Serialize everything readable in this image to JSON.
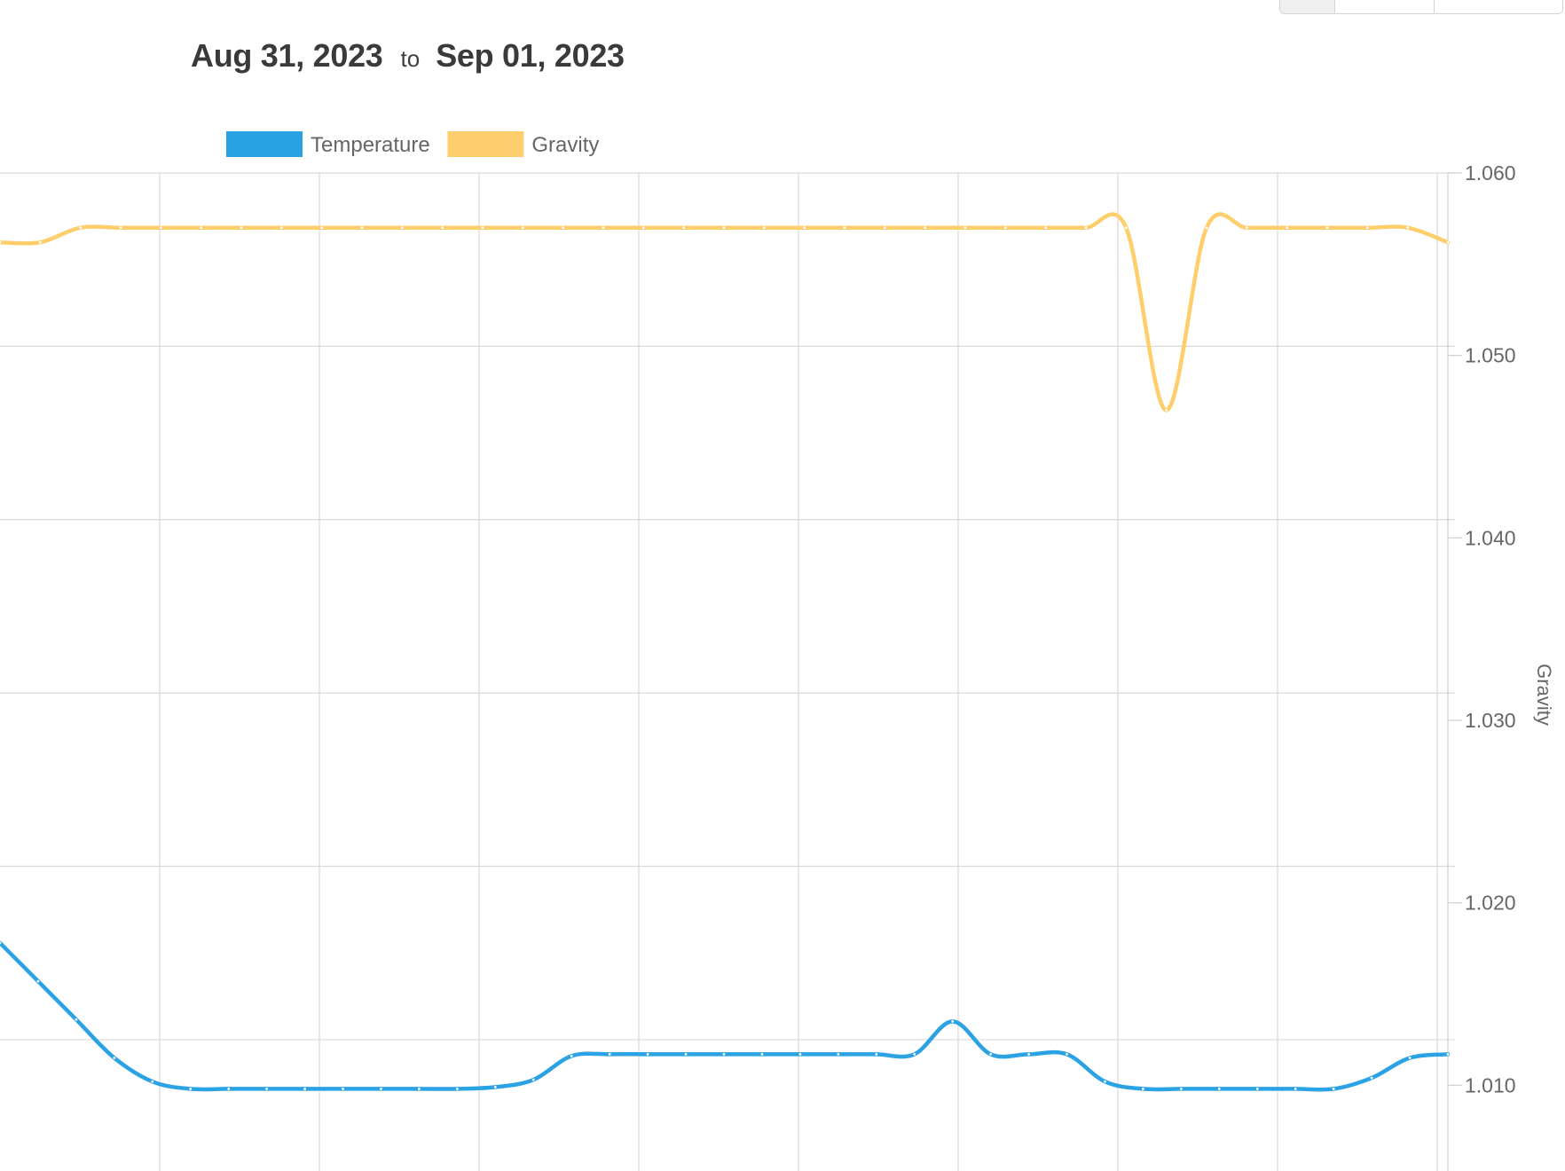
{
  "header": {
    "start_date": "Aug 31, 2023",
    "to_label": "to",
    "end_date": "Sep 01, 2023"
  },
  "chart_data": {
    "type": "line",
    "x_grid_count": 9,
    "yaxis_right": {
      "label": "Gravity",
      "ylim": [
        1.0053,
        1.06
      ],
      "ticks": [
        "1.060",
        "1.050",
        "1.040",
        "1.030",
        "1.020",
        "1.010"
      ]
    },
    "grid": true,
    "legend_position": "top",
    "series": [
      {
        "name": "Temperature",
        "color": "#2BA2E4",
        "values": [
          1.0178,
          1.0157,
          1.0136,
          1.0115,
          1.0102,
          1.0098,
          1.0098,
          1.0098,
          1.0098,
          1.0098,
          1.0098,
          1.0098,
          1.0098,
          1.0099,
          1.0103,
          1.0116,
          1.0117,
          1.0117,
          1.0117,
          1.0117,
          1.0117,
          1.0117,
          1.0117,
          1.0117,
          1.0117,
          1.0135,
          1.0117,
          1.0117,
          1.0117,
          1.0102,
          1.0098,
          1.0098,
          1.0098,
          1.0098,
          1.0098,
          1.0098,
          1.0104,
          1.0115,
          1.0117
        ]
      },
      {
        "name": "Gravity",
        "color": "#FECE6C",
        "values": [
          1.0562,
          1.0562,
          1.057,
          1.057,
          1.057,
          1.057,
          1.057,
          1.057,
          1.057,
          1.057,
          1.057,
          1.057,
          1.057,
          1.057,
          1.057,
          1.057,
          1.057,
          1.057,
          1.057,
          1.057,
          1.057,
          1.057,
          1.057,
          1.057,
          1.057,
          1.057,
          1.057,
          1.057,
          1.057,
          1.047,
          1.057,
          1.057,
          1.057,
          1.057,
          1.057,
          1.057,
          1.0562
        ]
      }
    ]
  }
}
